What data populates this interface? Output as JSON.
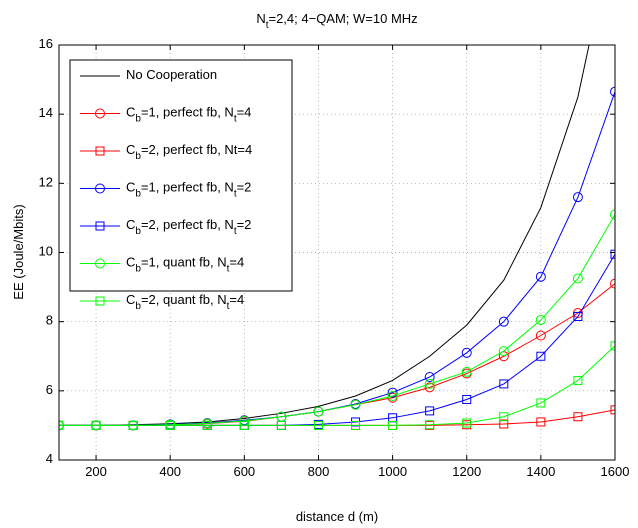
{
  "chart_data": {
    "type": "line",
    "title": "N_t=2,4; 4−QAM; W=10 MHz",
    "xlabel": "distance d (m)",
    "ylabel": "EE (Joule/Mbits)",
    "x": [
      100,
      200,
      300,
      400,
      500,
      600,
      700,
      800,
      900,
      1000,
      1100,
      1200,
      1300,
      1400,
      1500,
      1600
    ],
    "xlim": [
      100,
      1600
    ],
    "xticks": [
      200,
      400,
      600,
      800,
      1000,
      1200,
      1400,
      1600
    ],
    "ylim": [
      4,
      16
    ],
    "yticks": [
      4,
      6,
      8,
      10,
      12,
      14,
      16
    ],
    "grid": true,
    "legend": "upper left",
    "series": [
      {
        "name": "No Cooperation",
        "color": "#000000",
        "marker": "none",
        "values": [
          5,
          5,
          5.02,
          5.05,
          5.1,
          5.2,
          5.35,
          5.55,
          5.85,
          6.3,
          7.0,
          7.9,
          9.2,
          11.3,
          14.5,
          19.5
        ]
      },
      {
        "name": "C_b=1, perfect fb, N_t=4",
        "color": "#ff0000",
        "marker": "circle",
        "values": [
          5,
          5,
          5,
          5.02,
          5.05,
          5.12,
          5.25,
          5.4,
          5.6,
          5.8,
          6.1,
          6.5,
          7.0,
          7.6,
          8.25,
          9.1
        ]
      },
      {
        "name": "C_b=2, perfect fb, Nt=4",
        "color": "#ff0000",
        "marker": "square",
        "values": [
          5,
          5,
          5,
          5,
          5,
          5,
          5,
          5,
          5,
          5,
          5,
          5.02,
          5.04,
          5.1,
          5.25,
          5.45
        ]
      },
      {
        "name": "C_b=1, perfect fb, N_t=2",
        "color": "#0000ff",
        "marker": "circle",
        "values": [
          5,
          5,
          5,
          5.03,
          5.07,
          5.15,
          5.25,
          5.4,
          5.62,
          5.95,
          6.4,
          7.1,
          8.0,
          9.3,
          11.6,
          14.65
        ]
      },
      {
        "name": "C_b=2, perfect fb, N_t=2",
        "color": "#0000ff",
        "marker": "square",
        "values": [
          5,
          5,
          5,
          5,
          5,
          5,
          5,
          5.03,
          5.1,
          5.22,
          5.42,
          5.75,
          6.2,
          7.0,
          8.15,
          9.95
        ]
      },
      {
        "name": "C_b=1, quant fb, N_t=4",
        "color": "#00ff00",
        "marker": "circle",
        "values": [
          5,
          5,
          5,
          5.02,
          5.06,
          5.13,
          5.25,
          5.4,
          5.6,
          5.85,
          6.2,
          6.55,
          7.15,
          8.05,
          9.25,
          11.1
        ]
      },
      {
        "name": "C_b=2, quant fb, N_t=4",
        "color": "#00ff00",
        "marker": "square",
        "values": [
          5,
          5,
          5,
          5,
          5,
          5,
          5,
          5,
          5,
          5,
          5.02,
          5.07,
          5.25,
          5.65,
          6.3,
          7.3
        ]
      }
    ]
  }
}
